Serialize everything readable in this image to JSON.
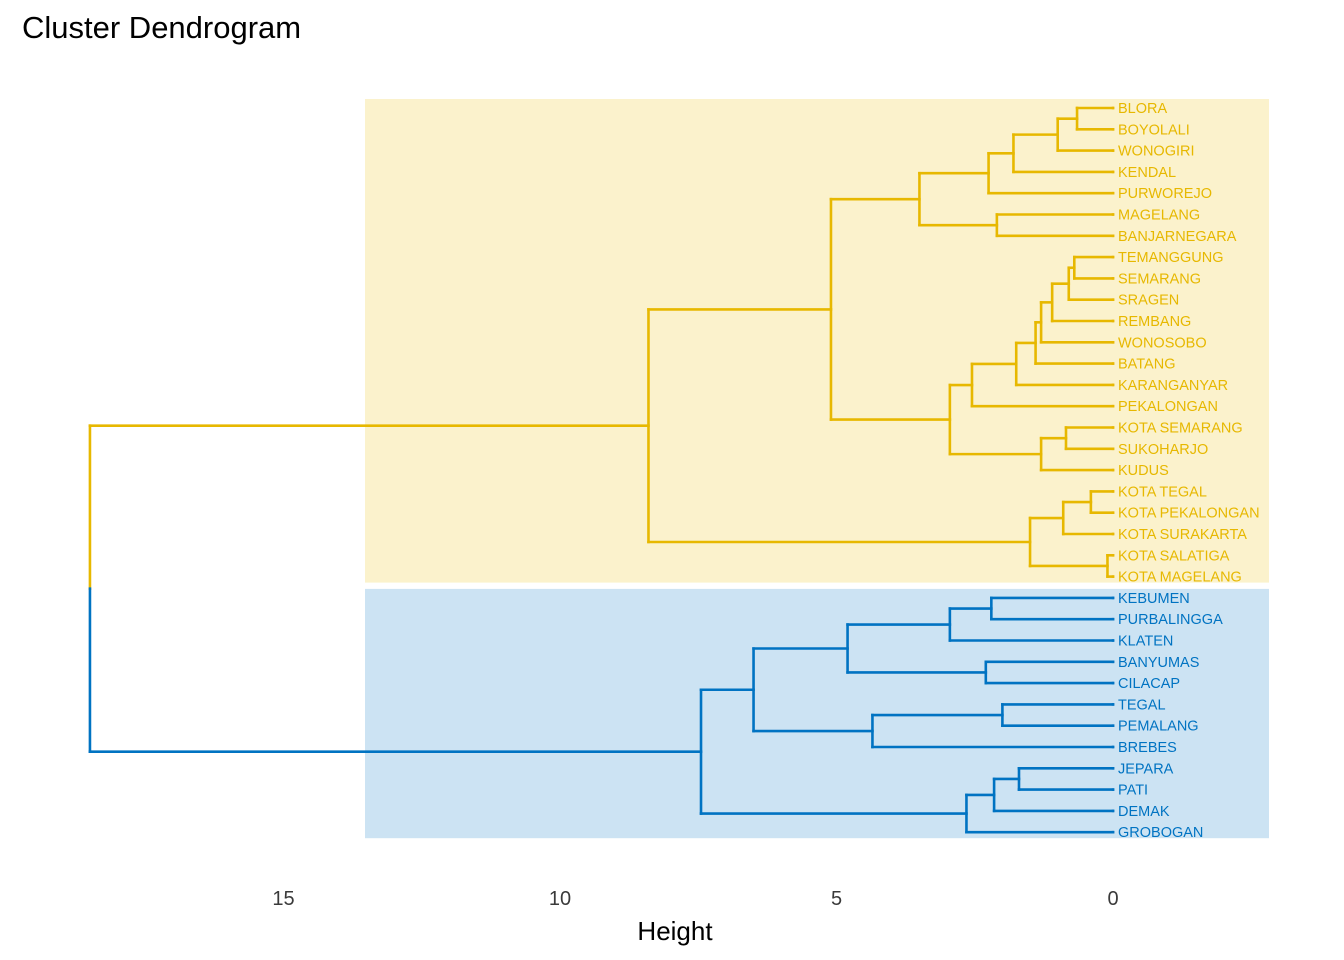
{
  "chart_data": {
    "type": "dendrogram",
    "title": "Cluster Dendrogram",
    "xlabel": "Height",
    "xticks": [
      15,
      10,
      5,
      0
    ],
    "xlim": [
      18.5,
      -2.85
    ],
    "colors": {
      "cluster1": "#E7B800",
      "cluster2": "#0073C2",
      "fill1": "#FBF2CC",
      "fill2": "#CCE3F3"
    },
    "leaves": [
      "BLORA",
      "BOYOLALI",
      "WONOGIRI",
      "KENDAL",
      "PURWOREJO",
      "MAGELANG",
      "BANJARNEGARA",
      "TEMANGGUNG",
      "SEMARANG",
      "SRAGEN",
      "REMBANG",
      "WONOSOBO",
      "BATANG",
      "KARANGANYAR",
      "PEKALONGAN",
      "KOTA SEMARANG",
      "SUKOHARJO",
      "KUDUS",
      "KOTA TEGAL",
      "KOTA PEKALONGAN",
      "KOTA SURAKARTA",
      "KOTA SALATIGA",
      "KOTA MAGELANG",
      "KEBUMEN",
      "PURBALINGGA",
      "KLATEN",
      "BANYUMAS",
      "CILACAP",
      "TEGAL",
      "PEMALANG",
      "BREBES",
      "JEPARA",
      "PATI",
      "DEMAK",
      "GROBOGAN"
    ],
    "leaf_cluster": [
      1,
      1,
      1,
      1,
      1,
      1,
      1,
      1,
      1,
      1,
      1,
      1,
      1,
      1,
      1,
      1,
      1,
      1,
      1,
      1,
      1,
      1,
      1,
      2,
      2,
      2,
      2,
      2,
      2,
      2,
      2,
      2,
      2,
      2,
      2
    ],
    "merges": [
      {
        "id": "n1",
        "a": "BLORA",
        "b": "BOYOLALI",
        "h": 0.65,
        "c": 1
      },
      {
        "id": "n2",
        "a": "n1",
        "b": "WONOGIRI",
        "h": 1.0,
        "c": 1
      },
      {
        "id": "n3",
        "a": "n2",
        "b": "KENDAL",
        "h": 1.8,
        "c": 1
      },
      {
        "id": "n4",
        "a": "n3",
        "b": "PURWOREJO",
        "h": 2.25,
        "c": 1
      },
      {
        "id": "n5",
        "a": "MAGELANG",
        "b": "BANJARNEGARA",
        "h": 2.1,
        "c": 1
      },
      {
        "id": "n6",
        "a": "n4",
        "b": "n5",
        "h": 3.5,
        "c": 1
      },
      {
        "id": "n7",
        "a": "TEMANGGUNG",
        "b": "SEMARANG",
        "h": 0.7,
        "c": 1
      },
      {
        "id": "n8",
        "a": "n7",
        "b": "SRAGEN",
        "h": 0.8,
        "c": 1
      },
      {
        "id": "n9",
        "a": "n8",
        "b": "REMBANG",
        "h": 1.1,
        "c": 1
      },
      {
        "id": "n10",
        "a": "n9",
        "b": "WONOSOBO",
        "h": 1.3,
        "c": 1
      },
      {
        "id": "n11",
        "a": "n10",
        "b": "BATANG",
        "h": 1.4,
        "c": 1
      },
      {
        "id": "n12",
        "a": "n11",
        "b": "KARANGANYAR",
        "h": 1.75,
        "c": 1
      },
      {
        "id": "n13",
        "a": "n12",
        "b": "PEKALONGAN",
        "h": 2.55,
        "c": 1
      },
      {
        "id": "n14",
        "a": "KOTA SEMARANG",
        "b": "SUKOHARJO",
        "h": 0.85,
        "c": 1
      },
      {
        "id": "n15",
        "a": "n14",
        "b": "KUDUS",
        "h": 1.3,
        "c": 1
      },
      {
        "id": "n16",
        "a": "n13",
        "b": "n15",
        "h": 2.95,
        "c": 1
      },
      {
        "id": "n17",
        "a": "n6",
        "b": "n16",
        "h": 5.1,
        "c": 1
      },
      {
        "id": "n18",
        "a": "KOTA TEGAL",
        "b": "KOTA PEKALONGAN",
        "h": 0.4,
        "c": 1
      },
      {
        "id": "n19",
        "a": "n18",
        "b": "KOTA SURAKARTA",
        "h": 0.9,
        "c": 1
      },
      {
        "id": "n20",
        "a": "KOTA SALATIGA",
        "b": "KOTA MAGELANG",
        "h": 0.1,
        "c": 1
      },
      {
        "id": "n21",
        "a": "n19",
        "b": "n20",
        "h": 1.5,
        "c": 1
      },
      {
        "id": "n22",
        "a": "n17",
        "b": "n21",
        "h": 8.4,
        "c": 1
      },
      {
        "id": "m1",
        "a": "KEBUMEN",
        "b": "PURBALINGGA",
        "h": 2.2,
        "c": 2
      },
      {
        "id": "m2",
        "a": "m1",
        "b": "KLATEN",
        "h": 2.95,
        "c": 2
      },
      {
        "id": "m3",
        "a": "BANYUMAS",
        "b": "CILACAP",
        "h": 2.3,
        "c": 2
      },
      {
        "id": "m4",
        "a": "m2",
        "b": "m3",
        "h": 4.8,
        "c": 2
      },
      {
        "id": "m5",
        "a": "TEGAL",
        "b": "PEMALANG",
        "h": 2.0,
        "c": 2
      },
      {
        "id": "m6",
        "a": "m5",
        "b": "BREBES",
        "h": 4.35,
        "c": 2
      },
      {
        "id": "m7",
        "a": "m4",
        "b": "m6",
        "h": 6.5,
        "c": 2
      },
      {
        "id": "m8",
        "a": "JEPARA",
        "b": "PATI",
        "h": 1.7,
        "c": 2
      },
      {
        "id": "m9",
        "a": "m8",
        "b": "DEMAK",
        "h": 2.15,
        "c": 2
      },
      {
        "id": "m10",
        "a": "m9",
        "b": "GROBOGAN",
        "h": 2.65,
        "c": 2
      },
      {
        "id": "m11",
        "a": "m7",
        "b": "m10",
        "h": 7.45,
        "c": 2
      },
      {
        "id": "root",
        "a": "n22",
        "b": "m11",
        "h": 18.5,
        "c": 0
      }
    ]
  }
}
